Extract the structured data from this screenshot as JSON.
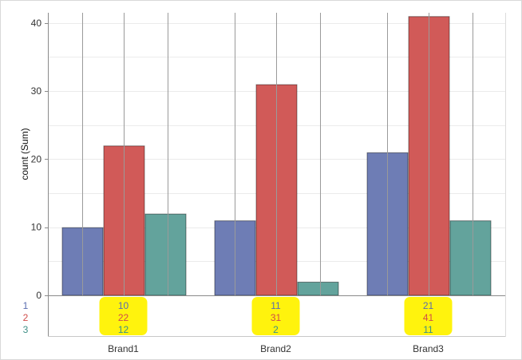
{
  "chart_data": {
    "type": "bar",
    "ylabel": "count (Sum)",
    "xlabel": "",
    "ylim": [
      0,
      41.5
    ],
    "yticks": [
      0,
      10,
      20,
      30,
      40
    ],
    "grid": true,
    "categories": [
      "Brand1",
      "Brand2",
      "Brand3"
    ],
    "series": [
      {
        "name": "1",
        "color": "#6e7db5",
        "values": [
          10,
          11,
          21
        ]
      },
      {
        "name": "2",
        "color": "#d15a58",
        "values": [
          22,
          31,
          41
        ]
      },
      {
        "name": "3",
        "color": "#63a39c",
        "values": [
          12,
          2,
          11
        ]
      }
    ],
    "table_highlight_color": "#fff200"
  }
}
